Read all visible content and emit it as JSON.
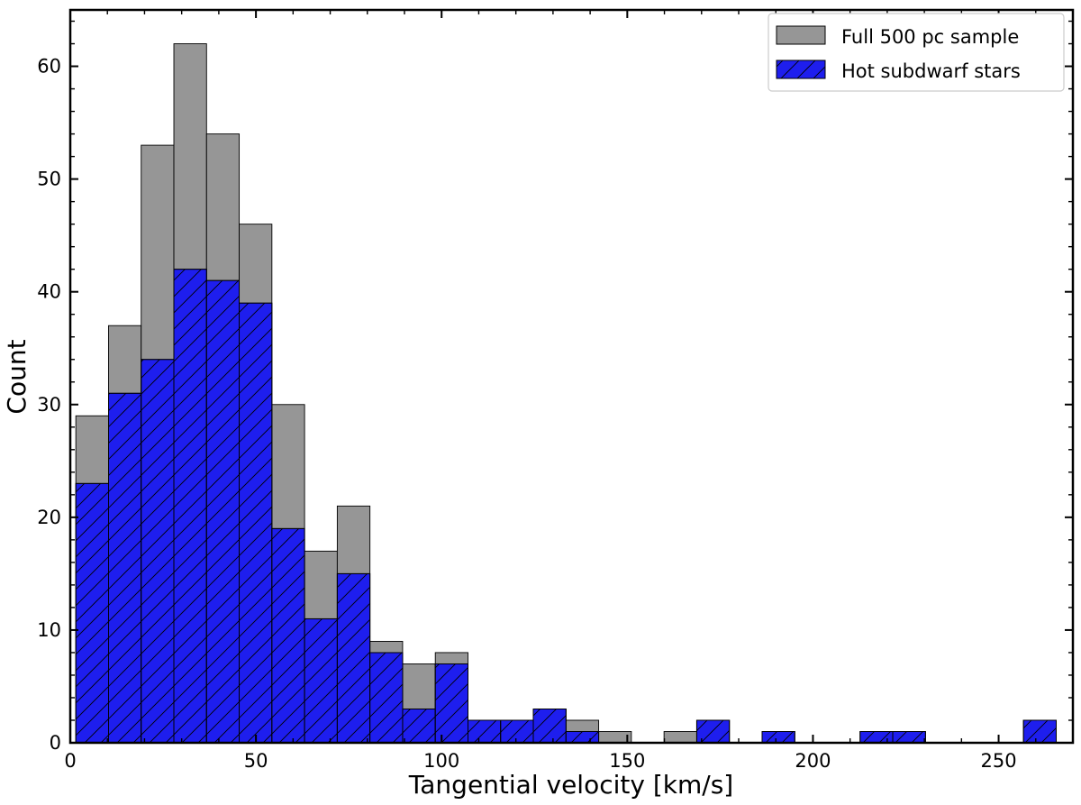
{
  "chart_data": {
    "type": "bar",
    "subtype": "overlaid-histogram",
    "xlabel": "Tangential velocity [km/s]",
    "ylabel": "Count",
    "xlim": [
      0,
      270
    ],
    "ylim": [
      0,
      65
    ],
    "xticks": [
      0,
      50,
      100,
      150,
      200,
      250
    ],
    "yticks": [
      0,
      10,
      20,
      30,
      40,
      50,
      60
    ],
    "bin_edges": [
      1.5,
      10.3,
      19.1,
      27.9,
      36.7,
      45.5,
      54.3,
      63.1,
      71.9,
      80.7,
      89.5,
      98.3,
      107.1,
      115.9,
      124.7,
      133.5,
      142.3,
      151.1,
      159.9,
      168.7,
      177.5,
      186.3,
      195.1,
      203.9,
      212.7,
      221.5,
      230.3,
      239.1,
      247.9,
      256.7,
      265.5
    ],
    "series": [
      {
        "name": "Full 500 pc sample",
        "color": "#969696",
        "hatch": false,
        "values": [
          29,
          37,
          53,
          62,
          54,
          46,
          30,
          17,
          21,
          9,
          7,
          8,
          2,
          2,
          3,
          2,
          1,
          0,
          1,
          2,
          0,
          1,
          0,
          0,
          1,
          1,
          0,
          0,
          0,
          2
        ]
      },
      {
        "name": "Hot subdwarf stars",
        "color": "#1e1eee",
        "hatch": true,
        "values": [
          23,
          31,
          34,
          42,
          41,
          39,
          19,
          11,
          15,
          8,
          3,
          7,
          2,
          2,
          3,
          1,
          0,
          0,
          0,
          2,
          0,
          1,
          0,
          0,
          1,
          1,
          0,
          0,
          0,
          2
        ]
      }
    ],
    "legend_position": "top-right",
    "grid": false
  }
}
